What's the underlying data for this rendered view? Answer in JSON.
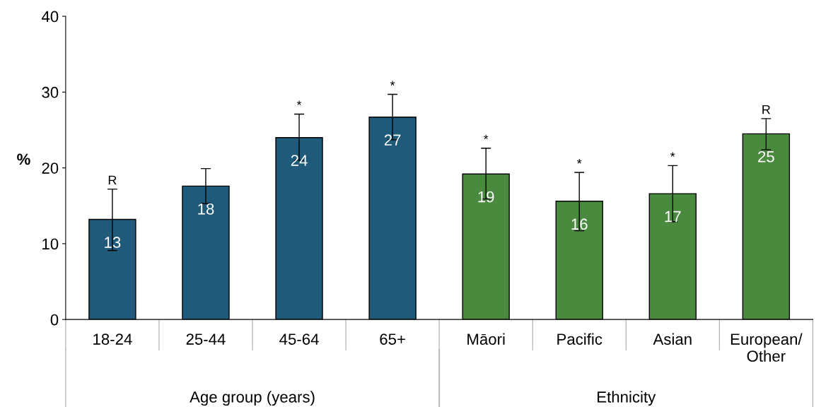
{
  "chart_data": {
    "type": "bar",
    "ylabel": "%",
    "categories": [
      "18-24",
      "25-44",
      "45-64",
      "65+",
      "Māori",
      "Pacific",
      "Asian",
      "European/\nOther"
    ],
    "values": [
      13.2,
      17.6,
      24.0,
      26.7,
      19.2,
      15.6,
      16.6,
      24.5
    ],
    "colors": [
      "#1f5a7a",
      "#1f5a7a",
      "#1f5a7a",
      "#1f5a7a",
      "#4a8a3f",
      "#4a8a3f",
      "#4a8a3f",
      "#4a8a3f"
    ],
    "errors": [
      [
        9.1,
        17.2
      ],
      [
        15.3,
        19.9
      ],
      [
        21.0,
        27.1
      ],
      [
        23.7,
        29.7
      ],
      [
        15.9,
        22.6
      ],
      [
        11.7,
        19.4
      ],
      [
        12.9,
        20.3
      ],
      [
        22.4,
        26.5
      ]
    ],
    "value_labels": [
      "13",
      "18",
      "24",
      "27",
      "19",
      "16",
      "17",
      "25"
    ],
    "ylim": [
      0,
      40
    ],
    "yticks": [
      0,
      10,
      20,
      30,
      40
    ],
    "grid": false,
    "legend": false,
    "annotations": [
      "Age group (years)",
      "Ethnicity",
      {
        "text": "R",
        "x": "18-24",
        "y": 17.2
      },
      {
        "text": "*",
        "x": "45-64",
        "y": 27.1
      },
      {
        "text": "*",
        "x": "65+",
        "y": 29.7
      },
      {
        "text": "*",
        "x": "Māori",
        "y": 22.6
      },
      {
        "text": "*",
        "x": "Pacific",
        "y": 19.4
      },
      {
        "text": "*",
        "x": "Asian",
        "y": 20.3
      },
      {
        "text": "R",
        "x": "European/\nOther",
        "y": 26.5
      }
    ]
  }
}
